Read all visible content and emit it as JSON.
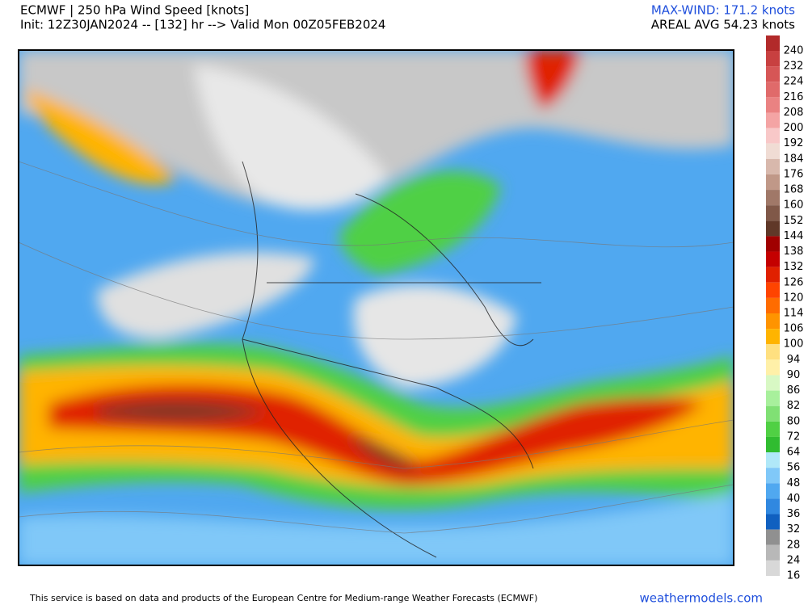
{
  "header": {
    "title": "ECMWF | 250 hPa Wind Speed [knots]",
    "init": "Init: 12Z30JAN2024 -- [132] hr --> Valid Mon 00Z05FEB2024",
    "max_wind": "MAX-WIND: 171.2 knots",
    "areal_avg": "AREAL AVG 54.23 knots"
  },
  "colorbar": {
    "levels": [
      {
        "label": 240,
        "color": "#b22a2a"
      },
      {
        "label": 232,
        "color": "#c84040"
      },
      {
        "label": 224,
        "color": "#d65656"
      },
      {
        "label": 216,
        "color": "#e06a6a"
      },
      {
        "label": 208,
        "color": "#ea8282"
      },
      {
        "label": 200,
        "color": "#f4a4a4"
      },
      {
        "label": 192,
        "color": "#f8c8c8"
      },
      {
        "label": 184,
        "color": "#f0dcd4"
      },
      {
        "label": 176,
        "color": "#d8b8ac"
      },
      {
        "label": 168,
        "color": "#c09888"
      },
      {
        "label": 160,
        "color": "#a07868"
      },
      {
        "label": 152,
        "color": "#805848"
      },
      {
        "label": 144,
        "color": "#603828"
      },
      {
        "label": 138,
        "color": "#a00000"
      },
      {
        "label": 132,
        "color": "#c40000"
      },
      {
        "label": 126,
        "color": "#e02000"
      },
      {
        "label": 120,
        "color": "#ff4400"
      },
      {
        "label": 114,
        "color": "#ff6c00"
      },
      {
        "label": 106,
        "color": "#ff9400"
      },
      {
        "label": 100,
        "color": "#ffb400"
      },
      {
        "label": 94,
        "color": "#ffe080"
      },
      {
        "label": 90,
        "color": "#fff0a8"
      },
      {
        "label": 86,
        "color": "#d8f8c4"
      },
      {
        "label": 82,
        "color": "#a8f09c"
      },
      {
        "label": 80,
        "color": "#80e074"
      },
      {
        "label": 72,
        "color": "#50d044"
      },
      {
        "label": 64,
        "color": "#30bc30"
      },
      {
        "label": 56,
        "color": "#b0e8f8"
      },
      {
        "label": 48,
        "color": "#80c8f8"
      },
      {
        "label": 40,
        "color": "#50a8f0"
      },
      {
        "label": 36,
        "color": "#3088e0"
      },
      {
        "label": 32,
        "color": "#1060c0"
      },
      {
        "label": 28,
        "color": "#909090"
      },
      {
        "label": 24,
        "color": "#b8b8b8"
      },
      {
        "label": 16,
        "color": "#d8d8d8"
      }
    ]
  },
  "footer": {
    "attribution": "This service is based on data and products of the European Centre for Medium-range Weather Forecasts (ECMWF)",
    "site": "weathermodels.com"
  }
}
